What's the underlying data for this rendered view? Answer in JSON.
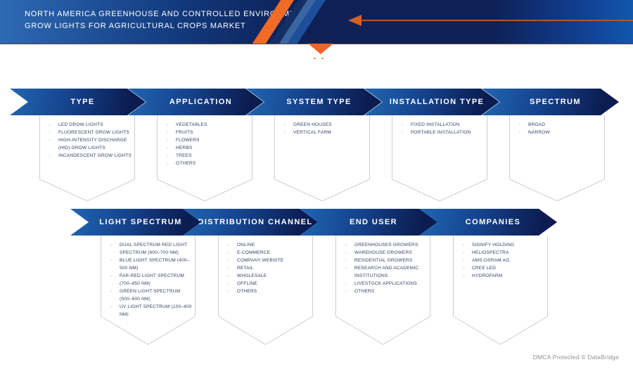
{
  "header": {
    "title_line1": "NORTH AMERICA GREENHOUSE AND CONTROLLED ENVIRONMENT",
    "title_line2": "GROW LIGHTS FOR AGRICULTURAL CROPS MARKET"
  },
  "colors": {
    "accent_orange": "#f26b26",
    "arrow_blue": "#2166b2",
    "arrow_navy": "#0b1c50",
    "header_navy": "#0d2157",
    "box_border": "#c9cdd5",
    "item_text": "#2e3f63",
    "watermark_gray": "#8f8f8f"
  },
  "rows": [
    {
      "segments": [
        {
          "label": "TYPE",
          "items": [
            "LED GROW LIGHTS",
            "FLUORESCENT GROW LIGHTS",
            "HIGH-INTENSITY DISCHARGE (HID) GROW LIGHTS",
            "INCANDESCENT GROW LIGHTS"
          ]
        },
        {
          "label": "APPLICATION",
          "items": [
            "VEGETABLES",
            "FRUITS",
            "FLOWERS",
            "HERBS",
            "TREES",
            "OTHERS"
          ]
        },
        {
          "label": "SYSTEM TYPE",
          "items": [
            "GREEN HOUSES",
            "VERTICAL FARM"
          ]
        },
        {
          "label": "INSTALLATION TYPE",
          "items": [
            "FIXED INSTALLATION",
            "PORTABLE INSTALLATION"
          ]
        },
        {
          "label": "SPECTRUM",
          "items": [
            "BROAD",
            "NARROW"
          ]
        }
      ]
    },
    {
      "segments": [
        {
          "label": "LIGHT SPECTRUM",
          "items": [
            "DUAL SPECTRUM RED LIGHT SPECTRUM (600–700 NM)",
            "BLUE LIGHT SPECTRUM (400–500 NM)",
            "FAR-RED LIGHT SPECTRUM (700–850 NM)",
            "GREEN LIGHT SPECTRUM (500–600 NM)",
            "UV LIGHT SPECTRUM (100–400 NM)"
          ]
        },
        {
          "label": "DISTRIBUTION CHANNEL",
          "items": [
            "ONLINE",
            "E-COMMERCE",
            "COMPANY WEBSITE",
            "RETAIL",
            "WHOLESALE",
            "OFFLINE",
            "OTHERS"
          ]
        },
        {
          "label": "END USER",
          "items": [
            "GREENHOUSES GROWERS",
            "WAREHOUSE GROWERS",
            "RESIDENTIAL GROWERS",
            "RESEARCH AND ACADEMIC INSTITUTIONS",
            "LIVESTOCK APPLICATIONS",
            "OTHERS"
          ]
        },
        {
          "label": "COMPANIES",
          "items": [
            "SIGNIFY HOLDING",
            "HELIOSPECTRA",
            "AMS-OSRAM AG",
            "CREE LED",
            "HYDROFARM"
          ]
        }
      ]
    }
  ],
  "footer": {
    "watermark": "DMCA Protected © DataBridge"
  }
}
